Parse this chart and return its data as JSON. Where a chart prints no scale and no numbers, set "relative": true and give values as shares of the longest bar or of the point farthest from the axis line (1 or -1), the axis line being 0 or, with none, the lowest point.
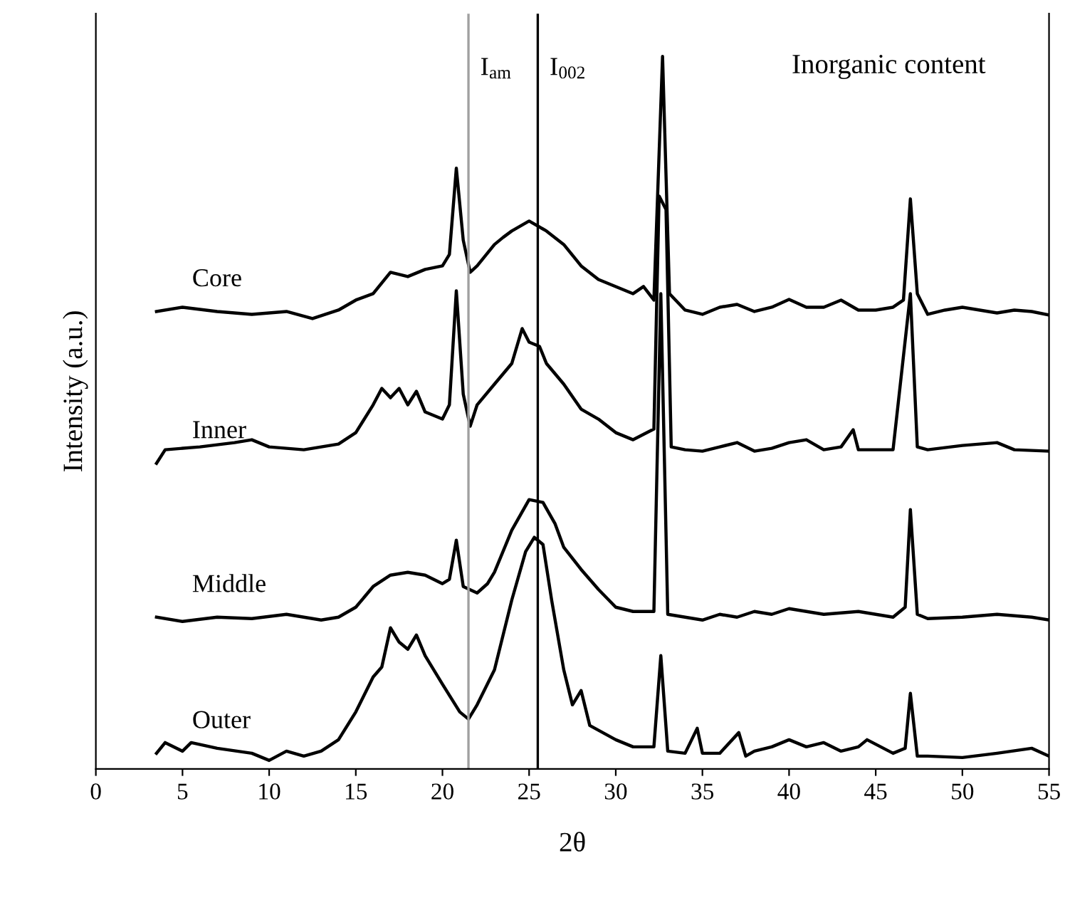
{
  "chart_data": {
    "type": "line",
    "relative": true,
    "xlabel": "2θ",
    "ylabel": "Intensity (a.u.)",
    "xlim": [
      0,
      55
    ],
    "xticks": [
      0,
      5,
      10,
      15,
      20,
      25,
      30,
      35,
      40,
      45,
      50,
      55
    ],
    "legend": false,
    "grid": false,
    "marker": "none",
    "line_style": "solid",
    "series": [
      {
        "name": "Core",
        "color": "#000000",
        "x": [
          3.5,
          5,
          7,
          9,
          11,
          12.5,
          14,
          15,
          16,
          17,
          18,
          19,
          20,
          20.4,
          20.8,
          21.2,
          21.6,
          22,
          23,
          23.5,
          24,
          25,
          26,
          27,
          28,
          29,
          30,
          31,
          31.6,
          32.2,
          32.7,
          33.1,
          34,
          35,
          36,
          37,
          38,
          39,
          40,
          41,
          42,
          43,
          44,
          45,
          46,
          46.6,
          47.0,
          47.4,
          48,
          49,
          50,
          51,
          52,
          53,
          54,
          55
        ],
        "values": [
          0.642,
          0.648,
          0.642,
          0.638,
          0.642,
          0.632,
          0.644,
          0.658,
          0.667,
          0.697,
          0.691,
          0.701,
          0.706,
          0.722,
          0.843,
          0.742,
          0.697,
          0.706,
          0.736,
          0.746,
          0.755,
          0.769,
          0.755,
          0.736,
          0.706,
          0.687,
          0.677,
          0.667,
          0.677,
          0.658,
          1.0,
          0.667,
          0.644,
          0.638,
          0.648,
          0.652,
          0.642,
          0.648,
          0.659,
          0.648,
          0.648,
          0.658,
          0.644,
          0.644,
          0.648,
          0.658,
          0.8,
          0.667,
          0.638,
          0.644,
          0.648,
          0.644,
          0.64,
          0.644,
          0.642,
          0.637
        ]
      },
      {
        "name": "Inner",
        "color": "#000000",
        "x": [
          3.5,
          4,
          6,
          8,
          9,
          10,
          12,
          13,
          14,
          15,
          16,
          16.5,
          17,
          17.5,
          18,
          18.5,
          19,
          20,
          20.4,
          20.8,
          21.2,
          21.6,
          22,
          23,
          24,
          24.6,
          25,
          25.6,
          26,
          27,
          28,
          29,
          30,
          31,
          32.2,
          32.5,
          32.9,
          33.2,
          34,
          35,
          36,
          37,
          38,
          39,
          40,
          41,
          42,
          43,
          43.7,
          44,
          46,
          47.0,
          47.4,
          48,
          50,
          52,
          53,
          55
        ],
        "values": [
          0.429,
          0.448,
          0.452,
          0.458,
          0.462,
          0.452,
          0.448,
          0.452,
          0.456,
          0.472,
          0.511,
          0.534,
          0.521,
          0.534,
          0.511,
          0.53,
          0.501,
          0.491,
          0.511,
          0.671,
          0.526,
          0.481,
          0.511,
          0.54,
          0.569,
          0.618,
          0.599,
          0.593,
          0.569,
          0.54,
          0.505,
          0.491,
          0.472,
          0.462,
          0.477,
          0.804,
          0.785,
          0.452,
          0.448,
          0.446,
          0.452,
          0.458,
          0.446,
          0.45,
          0.458,
          0.462,
          0.448,
          0.452,
          0.476,
          0.448,
          0.448,
          0.667,
          0.452,
          0.448,
          0.454,
          0.458,
          0.448,
          0.446
        ]
      },
      {
        "name": "Middle",
        "color": "#000000",
        "x": [
          3.5,
          5,
          7,
          9,
          11,
          13,
          14,
          15,
          16,
          17,
          18,
          19,
          20,
          20.4,
          20.8,
          21.2,
          22,
          22.6,
          23,
          24,
          25,
          25.8,
          26.5,
          27,
          28,
          29,
          30,
          31,
          32.2,
          32.6,
          33,
          34,
          35,
          36,
          37,
          38,
          39,
          40,
          41,
          42,
          44,
          46,
          46.7,
          47.0,
          47.4,
          48,
          50,
          52,
          54,
          55
        ],
        "values": [
          0.213,
          0.207,
          0.213,
          0.211,
          0.217,
          0.209,
          0.213,
          0.227,
          0.256,
          0.272,
          0.276,
          0.272,
          0.26,
          0.266,
          0.321,
          0.256,
          0.247,
          0.26,
          0.276,
          0.335,
          0.378,
          0.374,
          0.344,
          0.311,
          0.28,
          0.252,
          0.227,
          0.221,
          0.221,
          0.667,
          0.217,
          0.213,
          0.209,
          0.217,
          0.213,
          0.221,
          0.217,
          0.225,
          0.221,
          0.217,
          0.221,
          0.213,
          0.227,
          0.364,
          0.217,
          0.211,
          0.213,
          0.217,
          0.213,
          0.209
        ]
      },
      {
        "name": "Outer",
        "color": "#000000",
        "x": [
          3.5,
          4,
          5,
          5.5,
          7,
          9,
          10,
          11,
          12,
          13,
          14,
          15,
          16,
          16.5,
          17,
          17.5,
          18,
          18.5,
          19,
          20,
          21,
          21.5,
          22,
          23,
          24,
          24.8,
          25.3,
          25.8,
          26.3,
          27,
          27.5,
          28,
          28.5,
          30,
          31,
          32.2,
          32.6,
          33,
          34,
          34.7,
          35,
          36,
          37.1,
          37.5,
          38,
          39,
          40,
          41,
          42,
          43,
          44,
          44.5,
          46,
          46.7,
          47.0,
          47.4,
          48,
          50,
          52,
          54,
          55
        ],
        "values": [
          0.022,
          0.037,
          0.025,
          0.037,
          0.029,
          0.022,
          0.012,
          0.025,
          0.018,
          0.025,
          0.041,
          0.08,
          0.129,
          0.143,
          0.198,
          0.178,
          0.168,
          0.188,
          0.159,
          0.119,
          0.08,
          0.07,
          0.09,
          0.139,
          0.237,
          0.305,
          0.325,
          0.315,
          0.237,
          0.139,
          0.09,
          0.11,
          0.061,
          0.041,
          0.031,
          0.031,
          0.159,
          0.025,
          0.022,
          0.057,
          0.022,
          0.022,
          0.051,
          0.018,
          0.025,
          0.031,
          0.041,
          0.031,
          0.037,
          0.025,
          0.031,
          0.041,
          0.022,
          0.029,
          0.106,
          0.018,
          0.018,
          0.016,
          0.022,
          0.029,
          0.018
        ]
      }
    ],
    "ref_lines": [
      {
        "axis": "x",
        "value": 21.5,
        "label": "I$_{am}$",
        "color": "#a0a0a0",
        "line_style": "solid"
      },
      {
        "axis": "x",
        "value": 25.5,
        "label": "I$_{002}$",
        "color": "#000000",
        "line_style": "solid"
      }
    ],
    "annotations": [
      "Inorganic content"
    ]
  }
}
